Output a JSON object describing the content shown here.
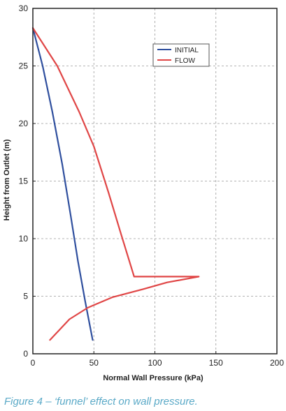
{
  "caption": "Figure 4 – ‘funnel’ effect on wall pressure.",
  "chart_data": {
    "type": "line",
    "xlabel": "Normal Wall Pressure (kPa)",
    "ylabel": "Height from Outlet (m)",
    "xlim": [
      0,
      200
    ],
    "ylim": [
      0,
      30
    ],
    "xticks": [
      "0",
      "50",
      "100",
      "150",
      "200"
    ],
    "yticks": [
      "0",
      "5",
      "10",
      "15",
      "20",
      "25",
      "30"
    ],
    "grid": true,
    "legend_position": "top-right",
    "series": [
      {
        "name": "INITIAL",
        "color": "#2f4f9e",
        "points": [
          [
            0,
            28.3
          ],
          [
            8,
            25.0
          ],
          [
            16,
            21.0
          ],
          [
            24,
            16.5
          ],
          [
            31,
            12.0
          ],
          [
            37,
            8.0
          ],
          [
            43,
            4.5
          ],
          [
            49,
            1.2
          ]
        ]
      },
      {
        "name": "FLOW",
        "color": "#e04646",
        "points": [
          [
            0,
            28.3
          ],
          [
            20,
            25.0
          ],
          [
            38,
            21.0
          ],
          [
            50,
            18.0
          ],
          [
            62,
            14.0
          ],
          [
            72,
            10.5
          ],
          [
            83,
            6.7
          ],
          [
            136,
            6.7
          ],
          [
            110,
            6.2
          ],
          [
            90,
            5.6
          ],
          [
            65,
            4.9
          ],
          [
            45,
            4.0
          ],
          [
            30,
            3.0
          ],
          [
            14,
            1.2
          ]
        ]
      }
    ]
  }
}
